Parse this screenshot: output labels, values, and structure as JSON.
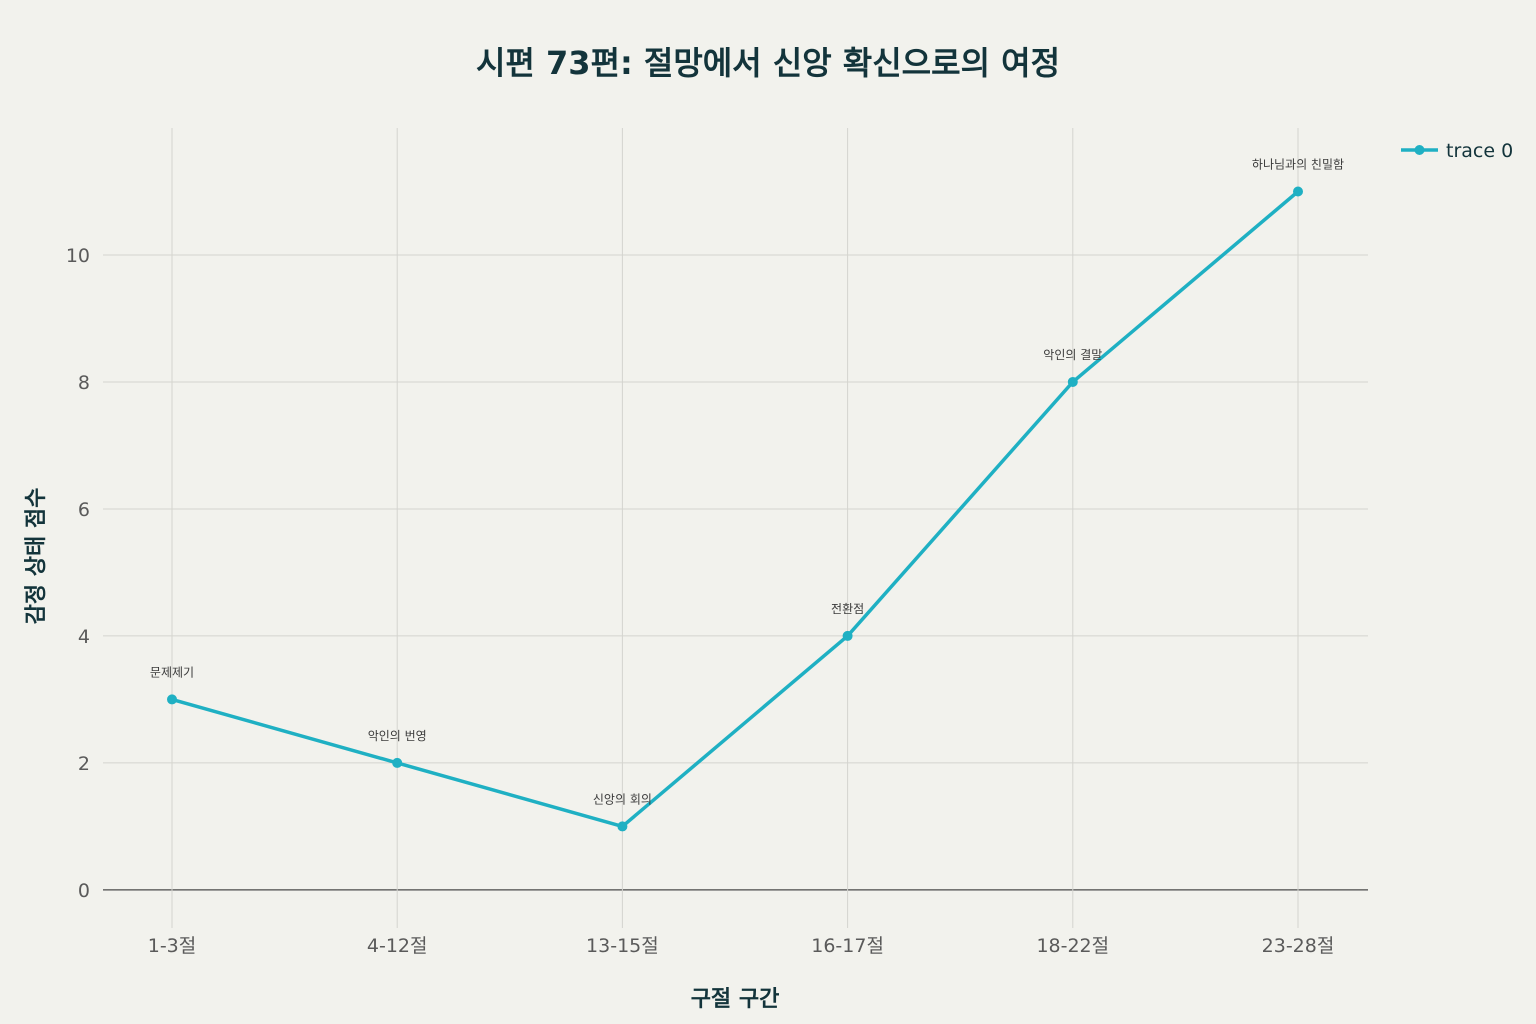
{
  "chart_data": {
    "type": "line",
    "title": "시편 73편: 절망에서 신앙 확신으로의 여정",
    "xlabel": "구절 구간",
    "ylabel": "감정 상태 점수",
    "categories": [
      "1-3절",
      "4-12절",
      "13-15절",
      "16-17절",
      "18-22절",
      "23-28절"
    ],
    "series": [
      {
        "name": "trace 0",
        "values": [
          3,
          2,
          1,
          4,
          8,
          11
        ],
        "point_labels": [
          "문제제기",
          "악인의 번영",
          "신앙의 회의",
          "전환점",
          "악인의 결말",
          "하나님과의 친밀함"
        ],
        "color": "#1fb0c3"
      }
    ],
    "ylim": [
      -0.6,
      12
    ],
    "yticks": [
      0,
      2,
      4,
      6,
      8,
      10
    ],
    "grid": true,
    "legend_position": "top-right"
  }
}
